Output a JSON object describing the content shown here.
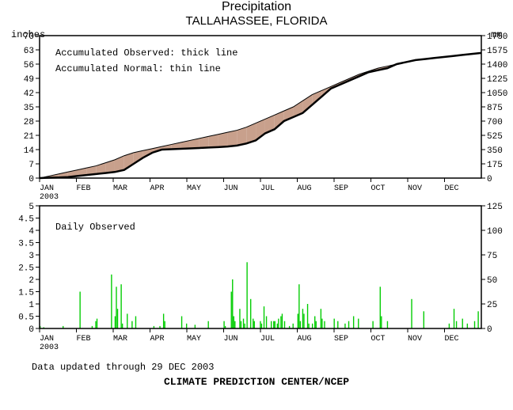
{
  "title": "Precipitation",
  "subtitle": "TALLAHASSEE, FLORIDA",
  "top_chart": {
    "y_left_label": "inches",
    "y_right_label": "mm",
    "y_left_ticks": [
      0,
      7,
      14,
      21,
      28,
      35,
      42,
      49,
      56,
      63,
      70
    ],
    "y_right_ticks": [
      0,
      175,
      350,
      525,
      700,
      875,
      1050,
      1225,
      1400,
      1575,
      1750
    ],
    "y_min": 0,
    "y_max": 70,
    "x_labels": [
      "JAN",
      "FEB",
      "MAR",
      "APR",
      "MAY",
      "JUN",
      "JUL",
      "AUG",
      "SEP",
      "OCT",
      "NOV",
      "DEC"
    ],
    "x_sub": "2003",
    "legend1": "Accumulated Observed: thick line",
    "legend2": "Accumulated Normal: thin line",
    "fill_above": "#aaddaa",
    "fill_below": "#c8a08c",
    "observed": [
      0,
      0.2,
      0.3,
      0.5,
      1,
      1.5,
      2,
      2.5,
      3,
      4,
      7,
      10,
      12.5,
      14,
      14.2,
      14.4,
      14.6,
      14.8,
      15,
      15.2,
      15.5,
      16,
      17,
      18.5,
      22,
      24,
      28,
      30,
      32,
      36,
      40,
      44,
      46,
      48,
      50,
      52,
      53,
      54,
      56,
      57,
      58,
      58.5,
      59,
      59.5,
      60,
      60.5,
      61,
      61.5
    ],
    "normal": [
      0,
      1,
      2,
      3,
      4,
      5,
      6,
      7.5,
      9,
      11,
      12.5,
      13.5,
      14.5,
      15.5,
      16.5,
      17.5,
      18.5,
      19.5,
      20.5,
      21.5,
      22.5,
      23.5,
      25,
      27,
      29,
      31,
      33,
      35,
      38,
      41,
      43,
      45,
      47,
      49,
      51,
      52.5,
      54,
      55,
      56,
      57,
      58,
      58.5,
      59,
      59.5,
      60,
      60.5,
      61,
      61.5
    ]
  },
  "bottom_chart": {
    "y_left_ticks": [
      0,
      0.5,
      1,
      1.5,
      2,
      2.5,
      3,
      3.5,
      4,
      4.5,
      5
    ],
    "y_right_ticks": [
      0,
      25,
      50,
      75,
      100,
      125
    ],
    "y_min": 0,
    "y_max": 5,
    "x_labels": [
      "JAN",
      "FEB",
      "MAR",
      "APR",
      "MAY",
      "JUN",
      "JUL",
      "AUG",
      "SEP",
      "OCT",
      "NOV",
      "DEC"
    ],
    "x_sub": "2003",
    "legend": "Daily Observed",
    "bar_color": "#00cc00",
    "daily": [
      0.1,
      0,
      0,
      0.05,
      0,
      0,
      0,
      0,
      0,
      0,
      0,
      0,
      0,
      0,
      0,
      0,
      0,
      0,
      0,
      0.1,
      0,
      0,
      0,
      0,
      0,
      0,
      0,
      0,
      0,
      0,
      0,
      0,
      0,
      1.5,
      0,
      0,
      0,
      0,
      0,
      0,
      0,
      0,
      0,
      0.1,
      0,
      0,
      0.3,
      0.4,
      0,
      0,
      0,
      0,
      0,
      0,
      0,
      0,
      0,
      0,
      0,
      2.2,
      0,
      0,
      0.5,
      1.7,
      0.8,
      0,
      0,
      1.8,
      0.2,
      0,
      0,
      0,
      0.6,
      0,
      0,
      0,
      0.3,
      0,
      0,
      0.5,
      0,
      0,
      0,
      0,
      0,
      0,
      0,
      0,
      0,
      0,
      0,
      0,
      0,
      0,
      0.1,
      0,
      0,
      0,
      0,
      0.1,
      0,
      0,
      0.6,
      0.3,
      0,
      0,
      0,
      0,
      0,
      0,
      0,
      0,
      0,
      0,
      0,
      0,
      0,
      0.5,
      0,
      0,
      0,
      0.2,
      0,
      0,
      0,
      0,
      0,
      0,
      0.15,
      0,
      0,
      0,
      0,
      0,
      0,
      0,
      0,
      0,
      0,
      0.3,
      0,
      0,
      0,
      0,
      0,
      0,
      0,
      0,
      0,
      0,
      0,
      0,
      0.3,
      0.1,
      0,
      0,
      0,
      0,
      1.5,
      2.0,
      0.5,
      0.3,
      0,
      0,
      0,
      0.8,
      0.3,
      0,
      0.4,
      0.2,
      0,
      2.7,
      0,
      0,
      1.2,
      0,
      0.4,
      0.3,
      0,
      0,
      0,
      0,
      0.3,
      0.2,
      0,
      0.9,
      0,
      0.5,
      0,
      0,
      0,
      0.3,
      0,
      0.3,
      0.3,
      0,
      0.2,
      0.4,
      0,
      0.5,
      0.6,
      0,
      0.3,
      0,
      0,
      0,
      0.1,
      0,
      0,
      0.2,
      0,
      0,
      0,
      0.6,
      1.8,
      0.3,
      0,
      0.8,
      0.6,
      0,
      0,
      1.0,
      0.2,
      0,
      0,
      0.2,
      0,
      0.5,
      0.3,
      0,
      0,
      0,
      0.8,
      0.4,
      0,
      0.3,
      0,
      0,
      0,
      0,
      0,
      0,
      0,
      0.4,
      0,
      0,
      0.3,
      0,
      0,
      0,
      0,
      0,
      0.2,
      0,
      0,
      0.3,
      0,
      0,
      0,
      0.5,
      0,
      0,
      0,
      0.4,
      0,
      0,
      0,
      0,
      0,
      0,
      0,
      0,
      0,
      0,
      0,
      0.3,
      0,
      0,
      0,
      0,
      0,
      1.7,
      0.5,
      0,
      0,
      0,
      0,
      0.3,
      0,
      0,
      0,
      0,
      0,
      0,
      0,
      0,
      0,
      0,
      0,
      0,
      0,
      0,
      0,
      0,
      0,
      0,
      0,
      1.2,
      0,
      0,
      0,
      0,
      0,
      0,
      0,
      0,
      0,
      0.7,
      0,
      0,
      0,
      0,
      0,
      0,
      0,
      0,
      0,
      0,
      0,
      0,
      0,
      0,
      0,
      0,
      0,
      0,
      0,
      0,
      0.2,
      0,
      0,
      0,
      0.8,
      0,
      0.3,
      0,
      0,
      0,
      0,
      0.4,
      0,
      0,
      0,
      0.2,
      0,
      0,
      0,
      0,
      0,
      0.3,
      0,
      0,
      0.7,
      0,
      0
    ]
  },
  "updated": "Data updated through 29 DEC 2003",
  "attribution": "CLIMATE PREDICTION CENTER/NCEP"
}
